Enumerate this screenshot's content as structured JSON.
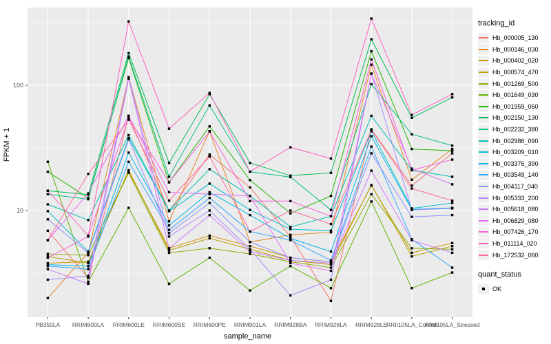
{
  "figure": {
    "y_axis_title": "FPKM + 1",
    "x_axis_title": "sample_name",
    "tracking_legend_title": "tracking_id",
    "quant_legend_title": "quant_status",
    "quant_status_label": "OK",
    "colors": {
      "panel_bg": "#EBEBEB",
      "grid_major": "#FFFFFF",
      "grid_minor": "#F7F7F7",
      "point": "#000000",
      "tick_label": "#4D4D4D",
      "tick_mark": "#333333",
      "legend_key_bg": "#F0F0F0"
    }
  },
  "chart_data": {
    "type": "line",
    "title": "",
    "xlabel": "sample_name",
    "ylabel": "FPKM + 1",
    "y_scale": "log10",
    "ylim": [
      1.4,
      420
    ],
    "y_major_ticks": [
      10,
      100
    ],
    "y_minor_gridlines": [
      3.162,
      31.62,
      316.2
    ],
    "grid": true,
    "legend_position": "right",
    "point_marker": "black-square",
    "quant_status": "OK",
    "categories": [
      "PB350LA",
      "RRIM600LA",
      "RRIM600LE",
      "RRIM600SE",
      "RRIM600PE",
      "RRIM901LA",
      "RRIM928BA",
      "RRIM928LA",
      "RRIM928LE",
      "RRII105LA_Control",
      "RRII105LA_Stressed"
    ],
    "series": [
      {
        "name": "Hb_000005_130",
        "color": "#F8766D",
        "values": [
          6.9,
          2.9,
          57,
          9.9,
          28,
          15.3,
          6.2,
          1.9,
          44.5,
          15.8,
          28.6
        ]
      },
      {
        "name": "Hb_000146_030",
        "color": "#E88526",
        "values": [
          2.0,
          4.6,
          116,
          8.2,
          43,
          5.6,
          6.4,
          6.7,
          146,
          17.6,
          31
        ]
      },
      {
        "name": "Hb_000402_020",
        "color": "#D09400",
        "values": [
          3.8,
          3.9,
          20.5,
          5.0,
          6.3,
          5.2,
          4.2,
          3.9,
          15.8,
          4.6,
          5.5
        ]
      },
      {
        "name": "Hb_000574_470",
        "color": "#B6A100",
        "values": [
          4.3,
          3.8,
          21,
          4.8,
          6.0,
          4.9,
          4.0,
          3.7,
          16,
          4.3,
          5.2
        ]
      },
      {
        "name": "Hb_001269_500",
        "color": "#8FAA00",
        "values": [
          4.5,
          4.4,
          20,
          4.6,
          5.0,
          4.5,
          3.9,
          3.5,
          13.5,
          5.0,
          4.9
        ]
      },
      {
        "name": "Hb_001649_030",
        "color": "#5FB300",
        "values": [
          24.5,
          2.7,
          10.5,
          2.6,
          4.2,
          2.3,
          3.6,
          2.4,
          11.8,
          2.4,
          3.2
        ]
      },
      {
        "name": "Hb_001959_060",
        "color": "#24B700",
        "values": [
          20.4,
          12.6,
          165,
          16.8,
          47,
          17.5,
          9.5,
          13.1,
          187,
          31,
          30
        ]
      },
      {
        "name": "Hb_002150_130",
        "color": "#00BC58",
        "values": [
          14.4,
          13.4,
          181,
          24,
          85,
          24,
          19,
          20,
          233,
          55,
          80
        ]
      },
      {
        "name": "Hb_002232_380",
        "color": "#00C085",
        "values": [
          13.5,
          12.3,
          170,
          18.6,
          69,
          20.4,
          18.5,
          10.1,
          102,
          40.7,
          33
        ]
      },
      {
        "name": "Hb_002986_090",
        "color": "#00C0AF",
        "values": [
          11.2,
          8.4,
          40,
          10,
          21.4,
          13.1,
          7.4,
          9.0,
          57,
          21,
          18.6
        ]
      },
      {
        "name": "Hb_003209_010",
        "color": "#00BDD0",
        "values": [
          9.9,
          4.7,
          38,
          9.9,
          16.4,
          10.1,
          7.1,
          6.9,
          43,
          10.4,
          11.5
        ]
      },
      {
        "name": "Hb_003376_390",
        "color": "#00B5EC",
        "values": [
          3.7,
          3.6,
          29,
          7.6,
          14,
          9.2,
          6.0,
          4.7,
          39.2,
          10.2,
          10.5
        ]
      },
      {
        "name": "Hb_003549_140",
        "color": "#2FA6FF",
        "values": [
          3.6,
          3.4,
          24.5,
          7.0,
          12.6,
          6.8,
          5.8,
          4.0,
          32.4,
          5.9,
          3.5
        ]
      },
      {
        "name": "Hb_004117_040",
        "color": "#8B93FF",
        "values": [
          8.5,
          4.6,
          37,
          6.6,
          11.5,
          5.6,
          4.2,
          3.9,
          28.6,
          8.9,
          9.2
        ]
      },
      {
        "name": "Hb_005333_200",
        "color": "#AE87FF",
        "values": [
          2.8,
          3.0,
          116,
          6.2,
          10,
          4.9,
          2.1,
          2.8,
          124,
          10.1,
          10.4
        ]
      },
      {
        "name": "Hb_005618_080",
        "color": "#CD79FF",
        "values": [
          3.4,
          2.6,
          113,
          5.0,
          9.2,
          4.7,
          4.0,
          3.8,
          20.8,
          5.8,
          4.6
        ]
      },
      {
        "name": "Hb_006829_080",
        "color": "#E36EF6",
        "values": [
          5.8,
          13.7,
          57,
          14,
          13.5,
          13.1,
          3.8,
          3.3,
          124,
          21.6,
          16.2
        ]
      },
      {
        "name": "Hb_007426_170",
        "color": "#F561DD",
        "values": [
          4.2,
          6.2,
          55,
          16.8,
          42.8,
          11.9,
          11.9,
          9.0,
          161,
          21,
          25.5
        ]
      },
      {
        "name": "Hb_011114_020",
        "color": "#FF61BF",
        "values": [
          14.4,
          6.3,
          324,
          45,
          87,
          20.4,
          32,
          26,
          341,
          58,
          85
        ]
      },
      {
        "name": "Hb_172532_060",
        "color": "#FF689F",
        "values": [
          5.8,
          19.6,
          53,
          12,
          27,
          6.8,
          10,
          7.8,
          44,
          15,
          12
        ]
      }
    ]
  }
}
